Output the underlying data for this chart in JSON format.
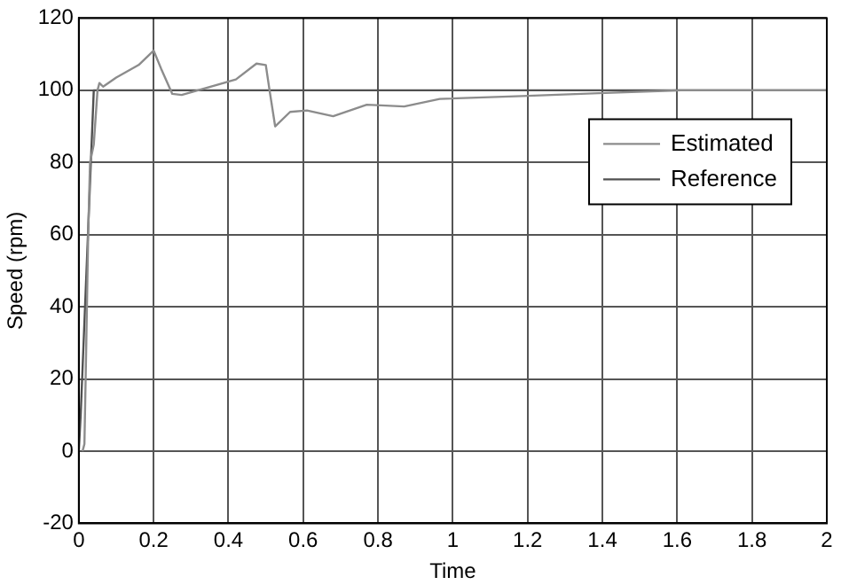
{
  "chart_data": {
    "type": "line",
    "xlabel": "Time",
    "ylabel": "Speed (rpm)",
    "xlim": [
      0,
      2
    ],
    "xticks": [
      0,
      0.2,
      0.4,
      0.6,
      0.8,
      1,
      1.2,
      1.4,
      1.6,
      1.8,
      2
    ],
    "ylim": [
      -20,
      120
    ],
    "yticks": [
      -20,
      0,
      20,
      40,
      60,
      80,
      100,
      120
    ],
    "grid": true,
    "legend": "top right",
    "marker": "none",
    "line_style": "solid",
    "series": [
      {
        "name": "Estimated",
        "color": "#8c8c8c",
        "x": [
          0.01,
          0.015,
          0.02,
          0.025,
          0.03,
          0.04,
          0.05,
          0.055,
          0.065,
          0.1,
          0.16,
          0.2,
          0.22,
          0.25,
          0.275,
          0.42,
          0.475,
          0.5,
          0.51,
          0.525,
          0.565,
          0.61,
          0.68,
          0.77,
          0.87,
          0.965,
          1.185,
          1.39,
          1.61,
          2
        ],
        "values": [
          0,
          2,
          30,
          60,
          80,
          85,
          100,
          102,
          101,
          103.5,
          107,
          111,
          106,
          99,
          98.7,
          103,
          107.4,
          107,
          100,
          90,
          94,
          94.4,
          92.8,
          96,
          95.5,
          97.6,
          98.4,
          99.2,
          100,
          100
        ]
      },
      {
        "name": "Reference",
        "color": "#505050",
        "x": [
          0,
          0.005,
          0.04,
          2
        ],
        "values": [
          0,
          10,
          100,
          100
        ]
      }
    ]
  }
}
